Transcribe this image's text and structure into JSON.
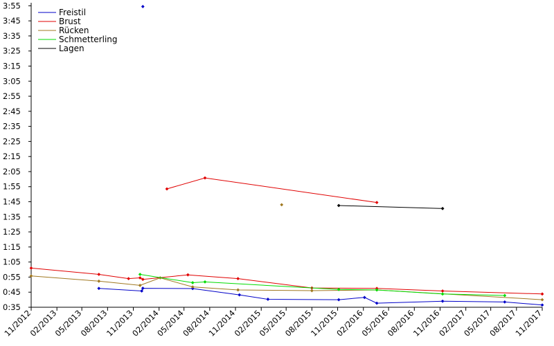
{
  "chart_data": {
    "type": "line",
    "title": "",
    "xlabel": "",
    "ylabel": "",
    "grid": false,
    "legend_position": "top-left",
    "y_ticks": [
      "0:35",
      "0:45",
      "0:55",
      "1:05",
      "1:15",
      "1:25",
      "1:35",
      "1:45",
      "1:55",
      "2:05",
      "2:15",
      "2:25",
      "2:35",
      "2:45",
      "2:55",
      "3:05",
      "3:15",
      "3:25",
      "3:35",
      "3:45",
      "3:55"
    ],
    "y_tick_seconds": [
      35,
      45,
      55,
      65,
      75,
      85,
      95,
      105,
      115,
      125,
      135,
      145,
      155,
      165,
      175,
      185,
      195,
      205,
      215,
      225,
      235
    ],
    "ylim_seconds": [
      35,
      237
    ],
    "x_ticks": [
      "11/2012",
      "02/2013",
      "05/2013",
      "08/2013",
      "11/2013",
      "02/2014",
      "05/2014",
      "08/2014",
      "11/2014",
      "02/2015",
      "05/2015",
      "08/2015",
      "11/2015",
      "02/2016",
      "05/2016",
      "08/2016",
      "11/2016",
      "02/2017",
      "05/2017",
      "08/2017",
      "11/2017"
    ],
    "x_tick_dates": [
      "2012-11-01",
      "2013-02-01",
      "2013-05-01",
      "2013-08-01",
      "2013-11-01",
      "2014-02-01",
      "2014-05-01",
      "2014-08-01",
      "2014-11-01",
      "2015-02-01",
      "2015-05-01",
      "2015-08-01",
      "2015-11-01",
      "2016-02-01",
      "2016-05-01",
      "2016-08-01",
      "2016-11-01",
      "2017-02-01",
      "2017-05-01",
      "2017-08-01",
      "2017-11-01"
    ],
    "xlim": [
      "2012-11-01",
      "2017-11-01"
    ],
    "series": [
      {
        "name": "Freistil",
        "color": "#0000c8",
        "points": [
          [
            "2013-07-01",
            47.5
          ],
          [
            "2013-12-01",
            45.8
          ],
          [
            "2013-12-05",
            47.6
          ],
          [
            "2014-06-01",
            47.4
          ],
          [
            "2014-11-15",
            43.2
          ],
          [
            "2015-02-25",
            40.3
          ],
          [
            "2015-11-05",
            40.0
          ],
          [
            "2016-02-05",
            41.5
          ],
          [
            "2016-03-20",
            37.7
          ],
          [
            "2016-11-10",
            39.0
          ],
          [
            "2017-06-20",
            38.5
          ],
          [
            "2017-11-01",
            36.5
          ]
        ]
      },
      {
        "name": "Freistil",
        "color": "#0000c8",
        "points": [
          [
            "2013-12-05",
            234.5
          ]
        ]
      },
      {
        "name": "Brust",
        "color": "#e00000",
        "points": [
          [
            "2012-11-01",
            61.0
          ],
          [
            "2013-07-01",
            56.8
          ],
          [
            "2013-10-15",
            54.0
          ],
          [
            "2013-11-25",
            54.5
          ],
          [
            "2013-12-05",
            53.5
          ],
          [
            "2014-05-15",
            56.5
          ],
          [
            "2014-11-10",
            54.0
          ],
          [
            "2015-08-01",
            47.8
          ],
          [
            "2016-03-20",
            47.5
          ],
          [
            "2016-11-10",
            45.8
          ],
          [
            "2017-11-01",
            43.8
          ]
        ]
      },
      {
        "name": "Brust",
        "color": "#e00000",
        "points": [
          [
            "2014-03-01",
            113.5
          ],
          [
            "2014-07-15",
            120.8
          ],
          [
            "2016-03-20",
            104.5
          ]
        ]
      },
      {
        "name": "Rücken",
        "color": "#a07820",
        "points": [
          [
            "2012-11-01",
            55.8
          ],
          [
            "2013-07-01",
            52.3
          ],
          [
            "2013-11-25",
            49.5
          ],
          [
            "2014-02-05",
            54.5
          ],
          [
            "2014-06-01",
            48.5
          ],
          [
            "2014-11-10",
            46.5
          ],
          [
            "2015-08-01",
            46.0
          ],
          [
            "2016-03-20",
            46.5
          ],
          [
            "2017-11-01",
            40.0
          ]
        ]
      },
      {
        "name": "Rücken",
        "color": "#a07820",
        "points": [
          [
            "2015-04-15",
            103.0
          ]
        ]
      },
      {
        "name": "Schmetterling",
        "color": "#00dc00",
        "points": [
          [
            "2013-11-25",
            56.8
          ],
          [
            "2014-06-01",
            51.3
          ],
          [
            "2014-07-15",
            51.8
          ],
          [
            "2015-11-05",
            46.8
          ],
          [
            "2016-03-20",
            46.5
          ],
          [
            "2016-11-10",
            43.8
          ],
          [
            "2017-06-20",
            42.8
          ]
        ]
      },
      {
        "name": "Lagen",
        "color": "#000000",
        "points": [
          [
            "2015-11-05",
            102.5
          ],
          [
            "2016-11-10",
            100.5
          ]
        ]
      }
    ],
    "legend": [
      {
        "name": "Freistil",
        "color": "#0000c8"
      },
      {
        "name": "Brust",
        "color": "#e00000"
      },
      {
        "name": "Rücken",
        "color": "#a07820"
      },
      {
        "name": "Schmetterling",
        "color": "#00dc00"
      },
      {
        "name": "Lagen",
        "color": "#000000"
      }
    ]
  }
}
